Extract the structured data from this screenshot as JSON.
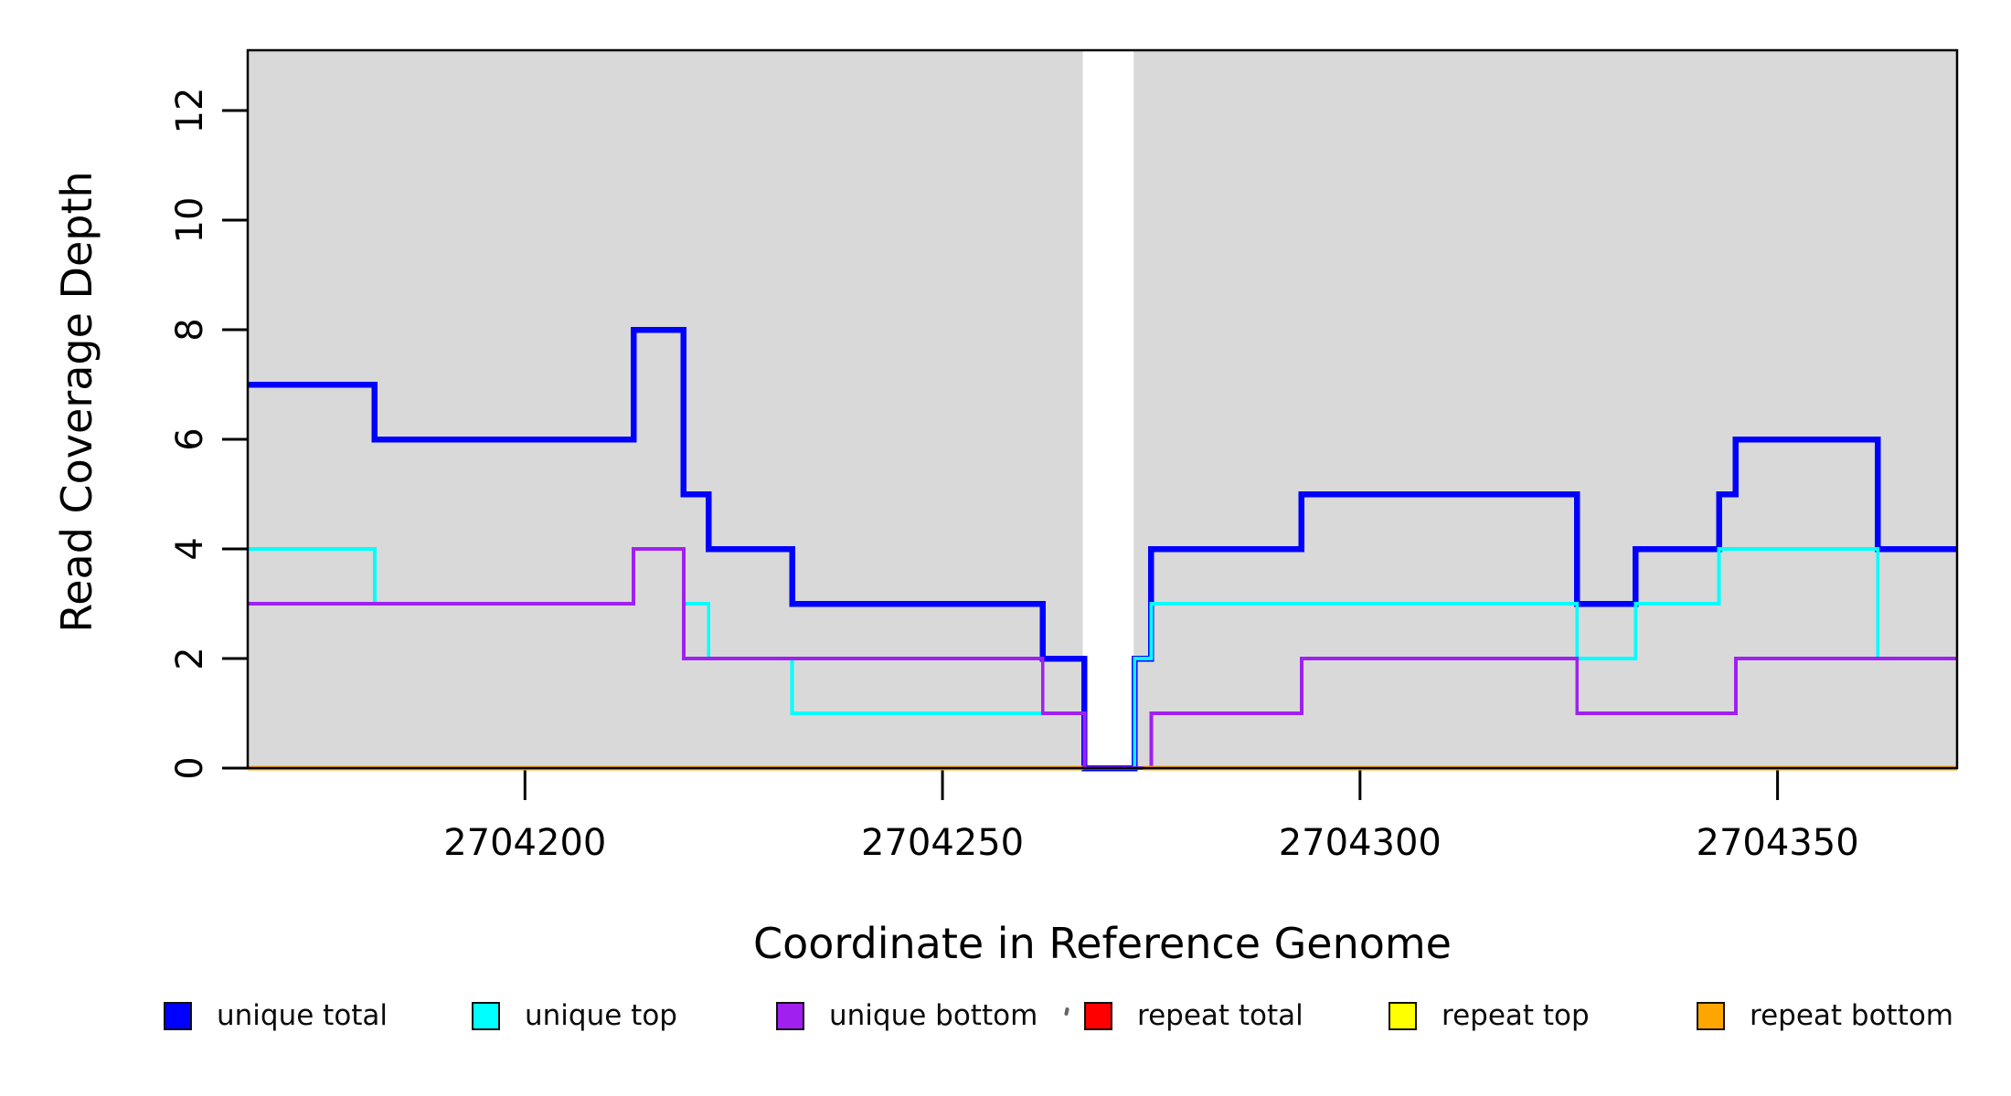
{
  "titles": {
    "x_axis": "Coordinate in Reference Genome",
    "y_axis": "Read Coverage Depth"
  },
  "chart_data": {
    "type": "line",
    "subtype": "step-coverage-plot",
    "title": "",
    "xlabel": "Coordinate in Reference Genome",
    "ylabel": "Read Coverage Depth",
    "xlim": [
      2704166.8,
      2704371.5
    ],
    "ylim": [
      0,
      13.1
    ],
    "grid": false,
    "plot_background": "#D9D9D9",
    "frame_color": "#000000",
    "no_data_band": {
      "x_start": 2704266.8,
      "x_end": 2704272.9
    },
    "x_ticks": [
      {
        "value": 2704200,
        "label": "2704200"
      },
      {
        "value": 2704250,
        "label": "2704250"
      },
      {
        "value": 2704300,
        "label": "2704300"
      },
      {
        "value": 2704350,
        "label": "2704350"
      }
    ],
    "y_ticks": [
      {
        "value": 0,
        "label": "0"
      },
      {
        "value": 2,
        "label": "2"
      },
      {
        "value": 4,
        "label": "4"
      },
      {
        "value": 6,
        "label": "6"
      },
      {
        "value": 8,
        "label": "8"
      },
      {
        "value": 10,
        "label": "10"
      },
      {
        "value": 12,
        "label": "12"
      }
    ],
    "series": [
      {
        "name": "unique total",
        "color": "#0000FF",
        "linewidth": 6.5,
        "parts": [
          [
            [
              2704166.8,
              7
            ],
            [
              2704182,
              6
            ],
            [
              2704213,
              8
            ],
            [
              2704219,
              5
            ],
            [
              2704222,
              4
            ],
            [
              2704232,
              3
            ],
            [
              2704262,
              2
            ],
            [
              2704267,
              0
            ],
            [
              2704273,
              2
            ],
            [
              2704275,
              4
            ],
            [
              2704293,
              5
            ],
            [
              2704326,
              3
            ],
            [
              2704333,
              4
            ],
            [
              2704343,
              5
            ],
            [
              2704345,
              6
            ],
            [
              2704362,
              4
            ],
            [
              2704371.5,
              4
            ]
          ]
        ]
      },
      {
        "name": "unique top",
        "color": "#00FFFF",
        "linewidth": 3.8,
        "parts": [
          [
            [
              2704166.8,
              4
            ],
            [
              2704182,
              3
            ],
            [
              2704213,
              4
            ],
            [
              2704219,
              3
            ],
            [
              2704222,
              2
            ],
            [
              2704232,
              1
            ],
            [
              2704267,
              0
            ],
            [
              2704273,
              2
            ],
            [
              2704275,
              3
            ],
            [
              2704326,
              2
            ],
            [
              2704333,
              3
            ],
            [
              2704343,
              4
            ],
            [
              2704362,
              2
            ],
            [
              2704371.5,
              2
            ]
          ]
        ]
      },
      {
        "name": "unique bottom",
        "color": "#A020F0",
        "linewidth": 3.8,
        "parts": [
          [
            [
              2704166.8,
              3
            ],
            [
              2704213,
              4
            ],
            [
              2704219,
              2
            ],
            [
              2704262,
              1
            ],
            [
              2704267,
              0
            ],
            [
              2704275,
              1
            ],
            [
              2704293,
              2
            ],
            [
              2704326,
              1
            ],
            [
              2704345,
              2
            ],
            [
              2704371.5,
              2
            ]
          ]
        ]
      },
      {
        "name": "repeat total",
        "color": "#FF0000",
        "linewidth": 3.8,
        "parts": [
          [
            [
              2704166.8,
              0
            ],
            [
              2704266.8,
              0
            ]
          ],
          [
            [
              2704274,
              0
            ],
            [
              2704371.5,
              0
            ]
          ]
        ]
      },
      {
        "name": "repeat top",
        "color": "#FFFF00",
        "linewidth": 3.8,
        "parts": [
          [
            [
              2704166.8,
              0
            ],
            [
              2704266.8,
              0
            ]
          ],
          [
            [
              2704274,
              0
            ],
            [
              2704371.5,
              0
            ]
          ]
        ]
      },
      {
        "name": "repeat bottom",
        "color": "#FFA500",
        "linewidth": 5,
        "parts": [
          [
            [
              2704166.8,
              0
            ],
            [
              2704266.8,
              0
            ]
          ],
          [
            [
              2704274,
              0
            ],
            [
              2704371.5,
              0
            ]
          ]
        ]
      }
    ]
  },
  "legend": {
    "items": [
      {
        "label": "unique total",
        "color": "#0000FF"
      },
      {
        "label": "unique top",
        "color": "#00FFFF"
      },
      {
        "label": "unique bottom",
        "color": "#A020F0"
      },
      {
        "label": "repeat total",
        "color": "#FF0000"
      },
      {
        "label": "repeat top",
        "color": "#FFFF00"
      },
      {
        "label": "repeat bottom",
        "color": "#FFA500"
      }
    ]
  }
}
